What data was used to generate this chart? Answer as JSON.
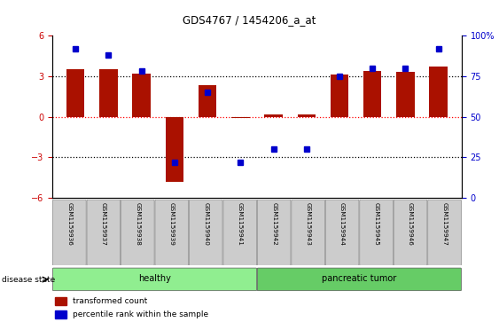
{
  "title": "GDS4767 / 1454206_a_at",
  "samples": [
    "GSM1159936",
    "GSM1159937",
    "GSM1159938",
    "GSM1159939",
    "GSM1159940",
    "GSM1159941",
    "GSM1159942",
    "GSM1159943",
    "GSM1159944",
    "GSM1159945",
    "GSM1159946",
    "GSM1159947"
  ],
  "transformed_counts": [
    3.5,
    3.5,
    3.2,
    -4.8,
    2.3,
    -0.1,
    0.2,
    0.15,
    3.1,
    3.4,
    3.3,
    3.7
  ],
  "percentile_raw": [
    92,
    88,
    78,
    22,
    65,
    22,
    30,
    30,
    75,
    80,
    80,
    92
  ],
  "bar_color": "#aa1100",
  "dot_color": "#0000cc",
  "ylim_left": [
    -6,
    6
  ],
  "ylim_right": [
    0,
    100
  ],
  "yticks_left": [
    -6,
    -3,
    0,
    3,
    6
  ],
  "yticks_right": [
    0,
    25,
    50,
    75,
    100
  ],
  "ytick_labels_right": [
    "0",
    "25",
    "50",
    "75",
    "100%"
  ],
  "groups": [
    {
      "label": "healthy",
      "start": 0,
      "end": 5,
      "color": "#90ee90"
    },
    {
      "label": "pancreatic tumor",
      "start": 6,
      "end": 11,
      "color": "#66cc66"
    }
  ],
  "disease_state_label": "disease state",
  "legend_items": [
    {
      "label": "transformed count",
      "color": "#aa1100"
    },
    {
      "label": "percentile rank within the sample",
      "color": "#0000cc"
    }
  ],
  "tick_label_color_left": "#cc0000",
  "tick_label_color_right": "#0000cc",
  "cell_bg_color": "#cccccc",
  "cell_edge_color": "#888888"
}
